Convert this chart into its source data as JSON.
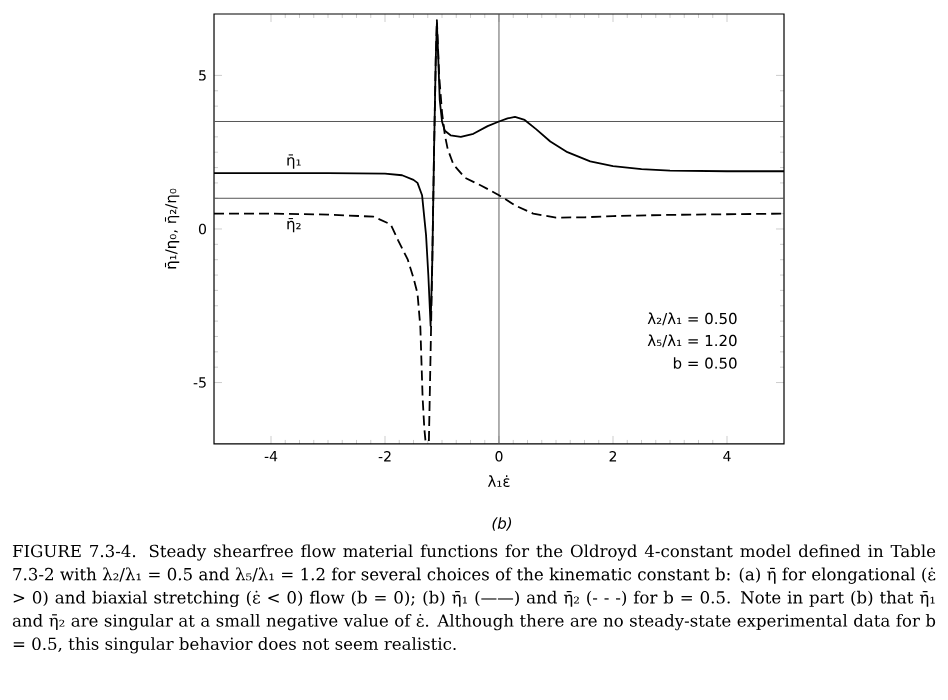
{
  "chart_data": {
    "type": "line",
    "xlabel": "λ₁ε̇",
    "ylabel": "η̄₁/η₀, η̄₂/η₀",
    "xlim": [
      -5,
      5
    ],
    "ylim": [
      -7,
      7
    ],
    "xticks": [
      -4,
      -2,
      0,
      2,
      4
    ],
    "yticks": [
      -5,
      0,
      5
    ],
    "grid": false,
    "legend": false,
    "marker": "none",
    "series": [
      {
        "name": "η̄₁",
        "color": "#000000",
        "line_style": "solid",
        "x": [
          -5,
          -4,
          -3,
          -2,
          -1.7,
          -1.5,
          -1.43,
          -1.35,
          -1.28,
          -1.24,
          -1.2,
          -1.17,
          -1.14,
          -1.11,
          -1.09,
          -1.07,
          -1.04,
          -1.0,
          -0.95,
          -0.85,
          -0.67,
          -0.45,
          -0.2,
          0,
          0.15,
          0.28,
          0.45,
          0.65,
          0.9,
          1.2,
          1.6,
          2,
          2.5,
          3,
          4,
          5
        ],
        "values": [
          1.82,
          1.82,
          1.82,
          1.8,
          1.75,
          1.6,
          1.5,
          1.1,
          -0.2,
          -1.5,
          -3.15,
          -1.0,
          2.5,
          5.5,
          6.7,
          5.8,
          4.2,
          3.5,
          3.2,
          3.05,
          3.0,
          3.1,
          3.35,
          3.5,
          3.6,
          3.65,
          3.55,
          3.25,
          2.85,
          2.5,
          2.2,
          2.05,
          1.95,
          1.9,
          1.88,
          1.88
        ]
      },
      {
        "name": "η̄₂",
        "color": "#000000",
        "line_style": "dashed",
        "x": [
          -5,
          -4,
          -3,
          -2.2,
          -1.9,
          -1.77,
          -1.6,
          -1.5,
          -1.43,
          -1.38,
          -1.34,
          -1.31,
          -1.29,
          -1.26,
          -1.23,
          -1.2,
          -1.17,
          -1.14,
          -1.11,
          -1.09,
          -1.05,
          -1.0,
          -0.95,
          -0.9,
          -0.8,
          -0.6,
          -0.3,
          0,
          0.3,
          0.6,
          1.0,
          1.5,
          2,
          3,
          4,
          5
        ],
        "values": [
          0.5,
          0.5,
          0.47,
          0.4,
          0.15,
          -0.37,
          -1.0,
          -1.6,
          -2.1,
          -3.2,
          -5.5,
          -6.5,
          -6.9,
          null,
          -6.9,
          -4,
          -1,
          2.5,
          5.5,
          6.8,
          5.0,
          3.8,
          3.06,
          2.6,
          2.1,
          1.67,
          1.4,
          1.1,
          0.75,
          0.5,
          0.37,
          0.38,
          0.42,
          0.46,
          0.48,
          0.5
        ]
      }
    ],
    "ref_lines": [
      {
        "axis": "y",
        "value": 1,
        "color": "#555555"
      },
      {
        "axis": "y",
        "value": 3.5,
        "color": "#555555"
      },
      {
        "axis": "x",
        "value": 0,
        "color": "#555555"
      }
    ],
    "annotations": [
      "λ₂/λ₁ = 0.50",
      "λ₅/λ₁ = 1.20",
      "b = 0.50",
      "(b)",
      "FIGURE 7.3-4. Steady shearfree flow material functions for the Oldroyd 4-constant model defined in Table 7.3-2 with λ₂/λ₁ = 0.5 and λ₅/λ₁ = 1.2 for several choices of the kinematic constant b: (a) η̄ for elongational (ε̇ > 0) and biaxial stretching (ε̇ < 0) flow (b = 0); (b) η̄₁ (——) and η̄₂ (- - -) for b = 0.5. Note in part (b) that η̄₁ and η̄₂ are singular at a small negative value of ε̇. Although there are no steady-state experimental data for b = 0.5, this singular behavior does not seem realistic."
    ]
  }
}
